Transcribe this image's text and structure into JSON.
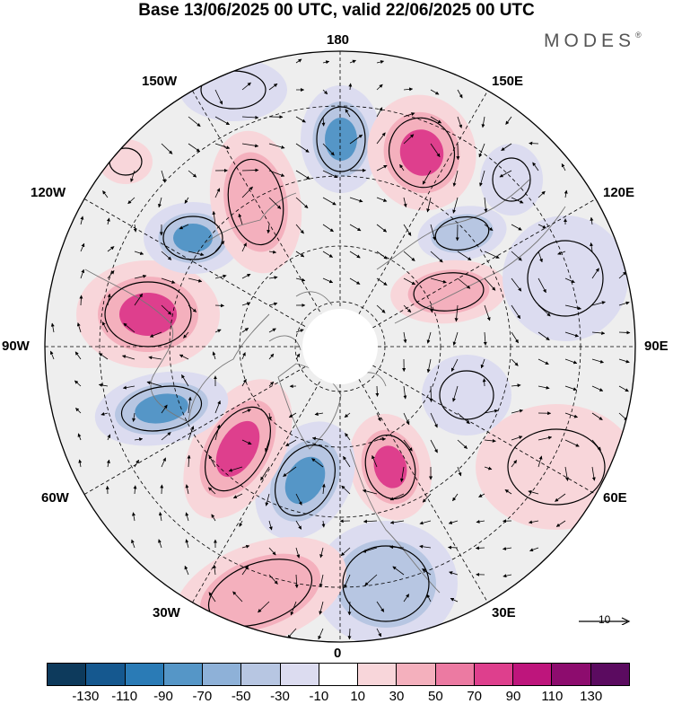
{
  "title": "Base 13/06/2025 00 UTC, valid 22/06/2025 00 UTC",
  "logo": "MODES",
  "logo_mark": "®",
  "lon_labels": {
    "l180": "180",
    "l150e": "150E",
    "l120e": "120E",
    "l90e": "90E",
    "l60e": "60E",
    "l30e": "30E",
    "l0": "0",
    "l30w": "30W",
    "l60w": "60W",
    "l90w": "90W",
    "l120w": "120W",
    "l150w": "150W"
  },
  "reference_vector_label": "10",
  "colorbar": {
    "colors": [
      "#0d3a5c",
      "#15588f",
      "#2a7bb6",
      "#5596c7",
      "#8eb1d8",
      "#b7c6e2",
      "#dcdcf0",
      "#ffffff",
      "#f8d6da",
      "#f4b0bd",
      "#ec7aa2",
      "#de3f8d",
      "#be157c",
      "#8d0c6e",
      "#5b0b60"
    ],
    "labels": [
      "-130",
      "-110",
      "-90",
      "-70",
      "-50",
      "-30",
      "-10",
      "10",
      "30",
      "50",
      "70",
      "90",
      "110",
      "130"
    ]
  },
  "map_colors": {
    "disk": "#eeeeee",
    "blue_weak": "#dcdcf0",
    "blue_mid": "#b7c6e2",
    "blue_strong": "#5596c7",
    "pink_weak": "#f8d6da",
    "pink_mid": "#f4b0bd",
    "pink_strong": "#de3f8d",
    "coast": "#777777"
  }
}
